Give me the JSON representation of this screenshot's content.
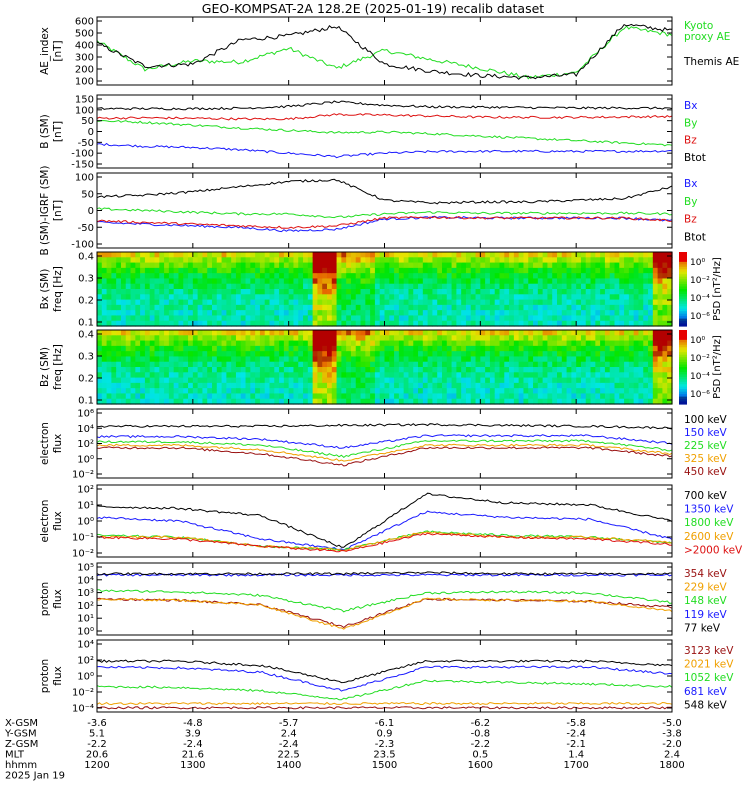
{
  "title": "GEO-KOMPSAT-2A 128.2E (2025-01-19) recalib dataset",
  "colors": {
    "black": "#000000",
    "blue": "#1a1aff",
    "green": "#22dd22",
    "red": "#dd1111",
    "orange": "#f0a000",
    "darkred": "#991010"
  },
  "panels": [
    {
      "id": "ae",
      "ylabel": [
        "AE_index",
        "[nT]"
      ],
      "ticks": [
        "600",
        "500",
        "400",
        "300",
        "200",
        "100"
      ],
      "legend": [
        {
          "text": "Kyoto",
          "color": "green"
        },
        {
          "text": "proxy AE",
          "color": "green"
        },
        {
          "text": "Themis AE",
          "color": "black"
        }
      ]
    },
    {
      "id": "bsm",
      "ylabel": [
        "B (SM)",
        "[nT]"
      ],
      "ticks": [
        "150",
        "100",
        "50",
        "0",
        "-50",
        "-100",
        "-150"
      ],
      "legend": [
        {
          "text": "Bx",
          "color": "blue"
        },
        {
          "text": "By",
          "color": "green"
        },
        {
          "text": "Bz",
          "color": "red"
        },
        {
          "text": "Btot",
          "color": "black"
        }
      ]
    },
    {
      "id": "bigrf",
      "ylabel": [
        "B (SM)-IGRF (SM)",
        "[nT]"
      ],
      "ticks": [
        "100",
        "50",
        "0",
        "-50",
        "-100"
      ],
      "legend": [
        {
          "text": "Bx",
          "color": "blue"
        },
        {
          "text": "By",
          "color": "green"
        },
        {
          "text": "Bz",
          "color": "red"
        },
        {
          "text": "Btot",
          "color": "black"
        }
      ]
    },
    {
      "id": "specbx",
      "ylabel": [
        "Bx (SM)",
        "freq [Hz]"
      ],
      "ticks": [
        "0.4",
        "0.3",
        "0.2",
        "0.1"
      ],
      "cbar_label": "PSD [nT²/Hz]",
      "cbar_ticks": [
        "10⁰",
        "10⁻²",
        "10⁻⁴",
        "10⁻⁶"
      ]
    },
    {
      "id": "specbz",
      "ylabel": [
        "Bz (SM)",
        "freq [Hz]"
      ],
      "ticks": [
        "0.4",
        "0.3",
        "0.2",
        "0.1"
      ],
      "cbar_label": "PSD [nT²/Hz]",
      "cbar_ticks": [
        "10⁰",
        "10⁻²",
        "10⁻⁴",
        "10⁻⁶"
      ]
    },
    {
      "id": "elec1",
      "ylabel": [
        "electron",
        "flux"
      ],
      "ticks": [
        "10⁶",
        "10⁴",
        "10²",
        "10⁰",
        "10⁻²"
      ],
      "legend": [
        {
          "text": "100 keV",
          "color": "black"
        },
        {
          "text": "150 keV",
          "color": "blue"
        },
        {
          "text": "225 keV",
          "color": "green"
        },
        {
          "text": "325 keV",
          "color": "orange"
        },
        {
          "text": "450 keV",
          "color": "darkred"
        }
      ]
    },
    {
      "id": "elec2",
      "ylabel": [
        "electron",
        "flux"
      ],
      "ticks": [
        "10²",
        "10¹",
        "10⁰",
        "10⁻¹",
        "10⁻²"
      ],
      "legend": [
        {
          "text": "700 keV",
          "color": "black"
        },
        {
          "text": "1350 keV",
          "color": "blue"
        },
        {
          "text": "1800 keV",
          "color": "green"
        },
        {
          "text": "2600 keV",
          "color": "orange"
        },
        {
          "text": ">2000 keV",
          "color": "red"
        }
      ]
    },
    {
      "id": "prot1",
      "ylabel": [
        "proton",
        "flux"
      ],
      "ticks": [
        "10⁵",
        "10⁴",
        "10³",
        "10²",
        "10¹",
        "10⁰"
      ],
      "legend": [
        {
          "text": "354 keV",
          "color": "darkred"
        },
        {
          "text": "229 keV",
          "color": "orange"
        },
        {
          "text": "148 keV",
          "color": "green"
        },
        {
          "text": "119 keV",
          "color": "blue"
        },
        {
          "text": "77 keV",
          "color": "black"
        }
      ]
    },
    {
      "id": "prot2",
      "ylabel": [
        "proton",
        "flux"
      ],
      "ticks": [
        "10⁴",
        "10²",
        "10⁰",
        "10⁻²",
        "10⁻⁴"
      ],
      "legend": [
        {
          "text": "3123 keV",
          "color": "darkred"
        },
        {
          "text": "2021 keV",
          "color": "orange"
        },
        {
          "text": "1052 keV",
          "color": "green"
        },
        {
          "text": "681 keV",
          "color": "blue"
        },
        {
          "text": "548 keV",
          "color": "black"
        }
      ]
    }
  ],
  "ephemeris": {
    "labels": [
      "X-GSM",
      "Y-GSM",
      "Z-GSM",
      "MLT",
      "hhmm",
      "2025 Jan 19"
    ],
    "columns": [
      [
        "-3.6",
        "5.1",
        "-2.2",
        "20.6",
        "1200"
      ],
      [
        "-4.8",
        "3.9",
        "-2.4",
        "21.6",
        "1300"
      ],
      [
        "-5.7",
        "2.4",
        "-2.4",
        "22.5",
        "1400"
      ],
      [
        "-6.1",
        "0.9",
        "-2.3",
        "23.5",
        "1500"
      ],
      [
        "-6.2",
        "-0.8",
        "-2.2",
        "0.5",
        "1600"
      ],
      [
        "-5.8",
        "-2.4",
        "-2.1",
        "1.4",
        "1700"
      ],
      [
        "-5.0",
        "-3.8",
        "-2.0",
        "2.4",
        "1800"
      ]
    ]
  },
  "chart_data": [
    {
      "type": "line",
      "title": "GEO-KOMPSAT-2A 128.2E (2025-01-19) recalib dataset",
      "x": [
        "1200",
        "1230",
        "1300",
        "1330",
        "1400",
        "1430",
        "1500",
        "1530",
        "1600",
        "1630",
        "1700",
        "1730",
        "1800"
      ],
      "ylabel": "AE_index [nT]",
      "ylim": [
        0,
        650
      ],
      "series": [
        {
          "name": "Kyoto proxy AE",
          "color": "green",
          "values": [
            420,
            150,
            230,
            220,
            350,
            160,
            330,
            240,
            160,
            70,
            120,
            550,
            480
          ]
        },
        {
          "name": "Themis AE",
          "color": "black",
          "values": [
            400,
            180,
            200,
            430,
            470,
            560,
            200,
            130,
            90,
            70,
            100,
            580,
            520
          ]
        }
      ]
    },
    {
      "type": "line",
      "ylabel": "B (SM) [nT]",
      "ylim": [
        -160,
        160
      ],
      "x": [
        "1200",
        "1230",
        "1300",
        "1330",
        "1400",
        "1430",
        "1500",
        "1530",
        "1600",
        "1630",
        "1700",
        "1730",
        "1800"
      ],
      "series": [
        {
          "name": "Bx",
          "color": "blue",
          "values": [
            -55,
            -65,
            -70,
            -80,
            -95,
            -110,
            -95,
            -88,
            -87,
            -87,
            -87,
            -87,
            -85
          ]
        },
        {
          "name": "By",
          "color": "green",
          "values": [
            48,
            40,
            28,
            15,
            5,
            -5,
            -2,
            -10,
            -20,
            -30,
            -40,
            -50,
            -60
          ]
        },
        {
          "name": "Bz",
          "color": "red",
          "values": [
            58,
            60,
            58,
            55,
            55,
            75,
            72,
            68,
            63,
            62,
            62,
            64,
            66
          ]
        },
        {
          "name": "Btot",
          "color": "black",
          "values": [
            100,
            100,
            100,
            102,
            110,
            130,
            115,
            108,
            107,
            105,
            103,
            103,
            102
          ]
        }
      ]
    },
    {
      "type": "line",
      "ylabel": "B (SM)-IGRF (SM) [nT]",
      "ylim": [
        -110,
        110
      ],
      "x": [
        "1200",
        "1230",
        "1300",
        "1330",
        "1400",
        "1430",
        "1500",
        "1530",
        "1600",
        "1630",
        "1700",
        "1730",
        "1800"
      ],
      "series": [
        {
          "name": "Bx",
          "color": "blue",
          "values": [
            -35,
            -40,
            -45,
            -50,
            -60,
            -55,
            -25,
            -20,
            -22,
            -22,
            -22,
            -22,
            -30
          ]
        },
        {
          "name": "By",
          "color": "green",
          "values": [
            5,
            0,
            -5,
            -10,
            -10,
            -20,
            -10,
            -5,
            -8,
            -8,
            -8,
            -8,
            -10
          ]
        },
        {
          "name": "Bz",
          "color": "red",
          "values": [
            -30,
            -35,
            -40,
            -45,
            -50,
            -45,
            -22,
            -20,
            -22,
            -22,
            -22,
            -22,
            -30
          ]
        },
        {
          "name": "Btot",
          "color": "black",
          "values": [
            40,
            45,
            55,
            70,
            85,
            90,
            30,
            22,
            25,
            25,
            30,
            35,
            70
          ]
        }
      ]
    },
    {
      "type": "heatmap",
      "ylabel": "Bx (SM) freq [Hz]",
      "ylim": [
        0,
        0.5
      ],
      "colorbar": "PSD [nT²/Hz]",
      "crange": [
        "10⁻⁶",
        "10⁰"
      ],
      "x": [
        "1200",
        "1300",
        "1400",
        "1500",
        "1600",
        "1700",
        "1800"
      ]
    },
    {
      "type": "heatmap",
      "ylabel": "Bz (SM) freq [Hz]",
      "ylim": [
        0,
        0.5
      ],
      "colorbar": "PSD [nT²/Hz]",
      "crange": [
        "10⁻⁶",
        "10⁰"
      ],
      "x": [
        "1200",
        "1300",
        "1400",
        "1500",
        "1600",
        "1700",
        "1800"
      ]
    },
    {
      "type": "line",
      "ylabel": "electron flux",
      "log": true,
      "ylim": [
        -2,
        6
      ],
      "x": [
        "1200",
        "1300",
        "1400",
        "1430",
        "1500",
        "1600",
        "1700",
        "1800"
      ],
      "series": [
        {
          "name": "100 keV",
          "color": "black",
          "values": [
            4.0,
            4.0,
            4.0,
            4.1,
            4.2,
            4.1,
            4.0,
            3.8
          ]
        },
        {
          "name": "150 keV",
          "color": "blue",
          "values": [
            2.8,
            2.8,
            2.5,
            1.5,
            2.9,
            2.9,
            2.9,
            2.0
          ]
        },
        {
          "name": "225 keV",
          "color": "green",
          "values": [
            2.2,
            2.2,
            1.8,
            0.5,
            2.3,
            2.3,
            2.3,
            1.2
          ]
        },
        {
          "name": "325 keV",
          "color": "orange",
          "values": [
            1.8,
            1.8,
            1.3,
            0.0,
            1.8,
            1.8,
            1.8,
            0.8
          ]
        },
        {
          "name": "450 keV",
          "color": "darkred",
          "values": [
            1.5,
            1.5,
            0.8,
            -0.5,
            1.5,
            1.5,
            1.5,
            0.5
          ]
        }
      ]
    },
    {
      "type": "line",
      "ylabel": "electron flux",
      "log": true,
      "ylim": [
        -2,
        2
      ],
      "x": [
        "1200",
        "1300",
        "1400",
        "1430",
        "1500",
        "1600",
        "1700",
        "1800"
      ],
      "series": [
        {
          "name": "700 keV",
          "color": "black",
          "values": [
            0.8,
            0.7,
            0.3,
            -1.5,
            1.5,
            1.0,
            0.9,
            0.0
          ]
        },
        {
          "name": "1350 keV",
          "color": "blue",
          "values": [
            0.2,
            0.0,
            -1.0,
            -1.6,
            0.5,
            0.2,
            0.1,
            -1.0
          ]
        },
        {
          "name": "1800 keV",
          "color": "green",
          "values": [
            -0.8,
            -0.9,
            -1.4,
            -1.6,
            -0.6,
            -0.8,
            -0.9,
            -1.2
          ]
        },
        {
          "name": "2600 keV",
          "color": "orange",
          "values": [
            -0.9,
            -0.9,
            -1.4,
            -1.6,
            -0.6,
            -0.9,
            -0.9,
            -1.2
          ]
        },
        {
          "name": ">2000 keV",
          "color": "red",
          "values": [
            -0.9,
            -1.0,
            -1.4,
            -1.7,
            -0.7,
            -0.9,
            -1.0,
            -1.3
          ]
        }
      ]
    },
    {
      "type": "line",
      "ylabel": "proton flux",
      "log": true,
      "ylim": [
        -0.5,
        5.5
      ],
      "x": [
        "1200",
        "1300",
        "1400",
        "1430",
        "1500",
        "1600",
        "1700",
        "1800"
      ],
      "series": [
        {
          "name": "354 keV",
          "color": "darkred",
          "values": [
            2.5,
            2.4,
            2.0,
            0.2,
            2.5,
            2.4,
            2.3,
            1.8
          ]
        },
        {
          "name": "229 keV",
          "color": "orange",
          "values": [
            2.5,
            2.4,
            2.0,
            0.0,
            2.5,
            2.4,
            2.3,
            1.5
          ]
        },
        {
          "name": "148 keV",
          "color": "green",
          "values": [
            3.2,
            3.1,
            2.8,
            1.5,
            3.0,
            3.1,
            3.0,
            2.2
          ]
        },
        {
          "name": "119 keV",
          "color": "blue",
          "values": [
            4.5,
            4.5,
            4.5,
            4.5,
            4.5,
            4.5,
            4.5,
            4.5
          ]
        },
        {
          "name": "77 keV",
          "color": "black",
          "values": [
            4.6,
            4.6,
            4.6,
            4.6,
            4.7,
            4.6,
            4.6,
            4.6
          ]
        }
      ]
    },
    {
      "type": "line",
      "ylabel": "proton flux",
      "log": true,
      "ylim": [
        -4.5,
        4
      ],
      "x": [
        "1200",
        "1300",
        "1400",
        "1430",
        "1500",
        "1600",
        "1700",
        "1800"
      ],
      "series": [
        {
          "name": "3123 keV",
          "color": "darkred",
          "values": [
            -4,
            -4,
            -4,
            -4,
            -4,
            -4,
            -4,
            -4
          ]
        },
        {
          "name": "2021 keV",
          "color": "orange",
          "values": [
            -3.5,
            -3.5,
            -3.5,
            -3.5,
            -3.5,
            -3.5,
            -3.5,
            -3.5
          ]
        },
        {
          "name": "1052 keV",
          "color": "green",
          "values": [
            -1.5,
            -1.6,
            -2.0,
            -3.0,
            -0.8,
            -1.0,
            -1.2,
            -1.5
          ]
        },
        {
          "name": "681 keV",
          "color": "blue",
          "values": [
            0.8,
            0.7,
            0.2,
            -2.0,
            0.8,
            0.8,
            0.8,
            0.0
          ]
        },
        {
          "name": "548 keV",
          "color": "black",
          "values": [
            1.5,
            1.5,
            1.0,
            -1.0,
            1.5,
            1.5,
            1.5,
            1.0
          ]
        }
      ]
    }
  ]
}
